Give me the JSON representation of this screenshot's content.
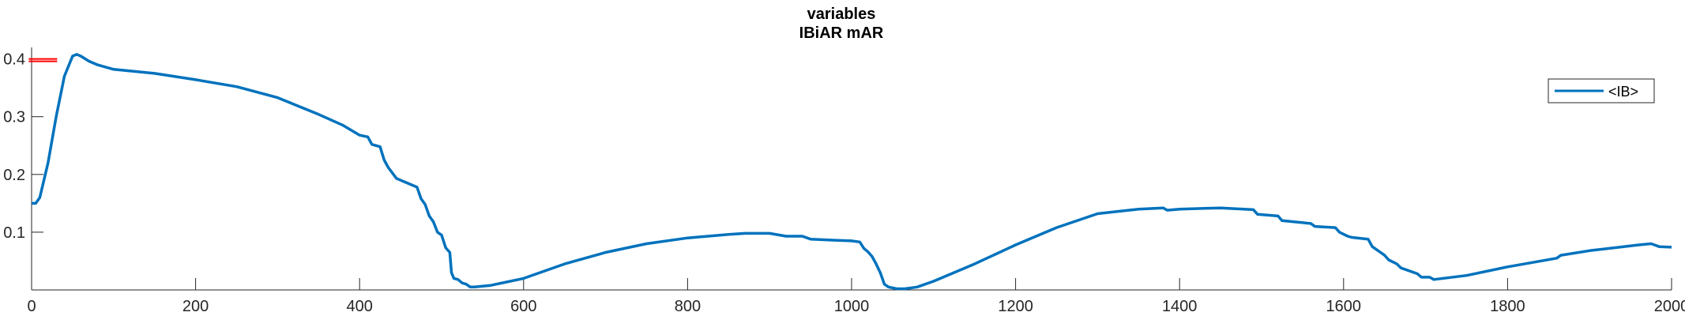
{
  "chart_data": {
    "type": "line",
    "title": "variables",
    "subtitle": "IBiAR mAR",
    "xlabel": "",
    "ylabel": "",
    "xlim": [
      0,
      2000
    ],
    "ylim": [
      0,
      0.42
    ],
    "grid": false,
    "legend_position": "top-right",
    "x_ticks": [
      0,
      200,
      400,
      600,
      800,
      1000,
      1200,
      1400,
      1600,
      1800,
      2000
    ],
    "x_tick_labels": [
      "0",
      "200",
      "400",
      "600",
      "800",
      "1000",
      "1200",
      "1400",
      "1600",
      "1800",
      "2000"
    ],
    "y_ticks": [
      0.1,
      0.2,
      0.3,
      0.4
    ],
    "y_tick_labels": [
      "0.1",
      "0.2",
      "0.3",
      "0.4"
    ],
    "series": [
      {
        "name": "<IB>",
        "color": "#0072BD",
        "x": [
          0,
          5,
          10,
          20,
          30,
          40,
          50,
          55,
          60,
          70,
          80,
          100,
          150,
          200,
          250,
          300,
          350,
          380,
          400,
          410,
          415,
          425,
          430,
          435,
          445,
          470,
          475,
          480,
          485,
          490,
          495,
          500,
          505,
          510,
          512,
          515,
          520,
          525,
          530,
          535,
          540,
          560,
          600,
          650,
          700,
          750,
          800,
          850,
          870,
          900,
          920,
          940,
          950,
          980,
          1000,
          1010,
          1015,
          1020,
          1025,
          1030,
          1035,
          1040,
          1045,
          1055,
          1065,
          1080,
          1100,
          1150,
          1200,
          1250,
          1300,
          1350,
          1380,
          1385,
          1400,
          1450,
          1490,
          1495,
          1520,
          1525,
          1560,
          1565,
          1590,
          1595,
          1605,
          1610,
          1630,
          1635,
          1650,
          1655,
          1665,
          1670,
          1690,
          1695,
          1705,
          1710,
          1750,
          1800,
          1860,
          1865,
          1900,
          1960,
          1975,
          1985,
          2000
        ],
        "values": [
          0.15,
          0.15,
          0.16,
          0.22,
          0.3,
          0.37,
          0.405,
          0.408,
          0.405,
          0.396,
          0.39,
          0.382,
          0.375,
          0.364,
          0.352,
          0.333,
          0.304,
          0.285,
          0.268,
          0.265,
          0.252,
          0.248,
          0.225,
          0.212,
          0.193,
          0.178,
          0.158,
          0.148,
          0.128,
          0.118,
          0.1,
          0.095,
          0.073,
          0.065,
          0.03,
          0.02,
          0.018,
          0.012,
          0.01,
          0.005,
          0.005,
          0.008,
          0.02,
          0.045,
          0.065,
          0.08,
          0.09,
          0.096,
          0.098,
          0.098,
          0.093,
          0.093,
          0.088,
          0.086,
          0.085,
          0.083,
          0.072,
          0.066,
          0.058,
          0.045,
          0.03,
          0.01,
          0.005,
          0.002,
          0.002,
          0.005,
          0.015,
          0.045,
          0.078,
          0.108,
          0.132,
          0.14,
          0.142,
          0.138,
          0.14,
          0.142,
          0.139,
          0.131,
          0.128,
          0.12,
          0.115,
          0.11,
          0.108,
          0.1,
          0.093,
          0.091,
          0.088,
          0.075,
          0.06,
          0.052,
          0.045,
          0.038,
          0.028,
          0.022,
          0.022,
          0.018,
          0.025,
          0.04,
          0.055,
          0.06,
          0.068,
          0.078,
          0.08,
          0.075,
          0.074
        ]
      }
    ],
    "extra_marks": [
      {
        "name": "red-marker",
        "x": 10,
        "y": 0.4,
        "color": "#ff0000"
      }
    ]
  }
}
